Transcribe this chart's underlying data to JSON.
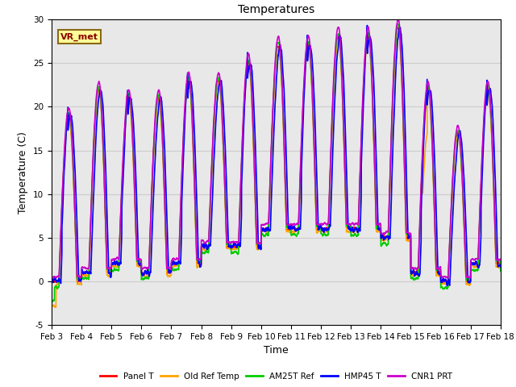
{
  "title": "Temperatures",
  "xlabel": "Time",
  "ylabel": "Temperature (C)",
  "ylim": [
    -5,
    30
  ],
  "xlim": [
    0,
    15
  ],
  "x_tick_labels": [
    "Feb 3",
    "Feb 4",
    "Feb 5",
    "Feb 6",
    "Feb 7",
    "Feb 8",
    "Feb 9",
    "Feb 10",
    "Feb 11",
    "Feb 12",
    "Feb 13",
    "Feb 14",
    "Feb 15",
    "Feb 16",
    "Feb 17",
    "Feb 18"
  ],
  "series_names": [
    "Panel T",
    "Old Ref Temp",
    "AM25T Ref",
    "HMP45 T",
    "CNR1 PRT"
  ],
  "series_colors": [
    "#ff0000",
    "#ffa500",
    "#00cc00",
    "#0000ff",
    "#cc00cc"
  ],
  "series_lw": [
    1.2,
    1.2,
    1.2,
    1.2,
    1.2
  ],
  "grid_color": "#cccccc",
  "bg_color": "#e8e8e8",
  "annotation_text": "VR_met",
  "title_fontsize": 10,
  "axis_fontsize": 9,
  "tick_fontsize": 7.5,
  "peak_temps": [
    19,
    22,
    21,
    21,
    23,
    23,
    25,
    27,
    27,
    28,
    28,
    29,
    22,
    17,
    22
  ],
  "low_temps": [
    0,
    1,
    2,
    1,
    2,
    4,
    4,
    6,
    6,
    6,
    6,
    5,
    1,
    0,
    2
  ]
}
